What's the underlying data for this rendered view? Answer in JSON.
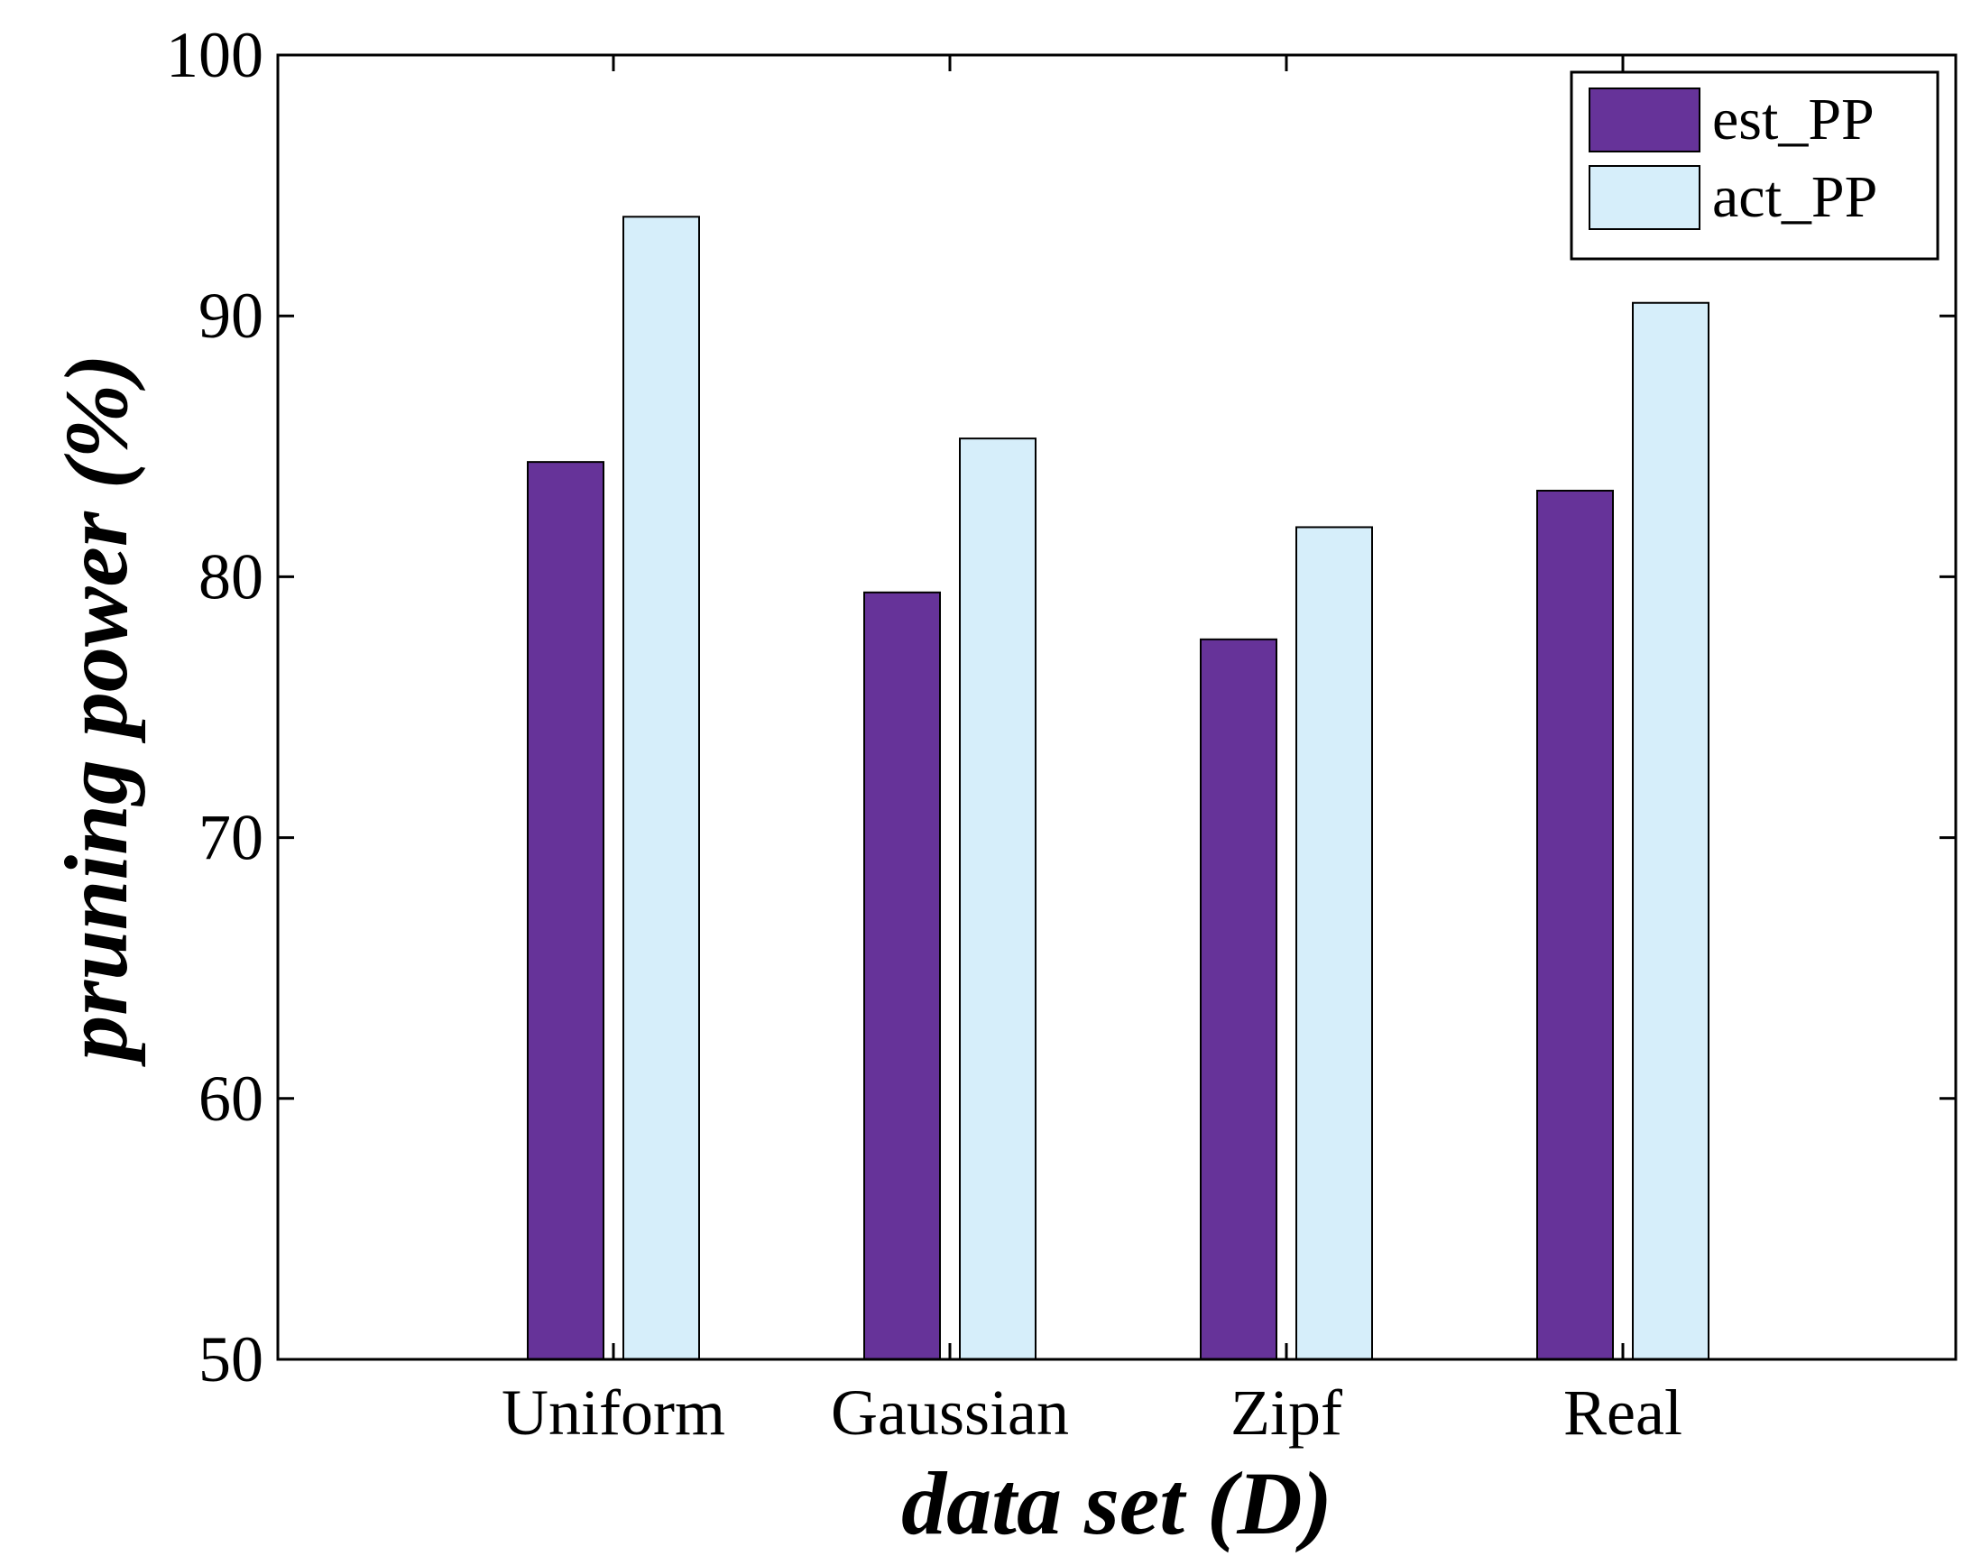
{
  "chart_data": {
    "type": "bar",
    "title": "",
    "xlabel": "data set (D)",
    "ylabel": "pruning power (%)",
    "categories": [
      "Uniform",
      "Gaussian",
      "Zipf",
      "Real"
    ],
    "series": [
      {
        "name": "est_PP",
        "values": [
          84.4,
          79.4,
          77.6,
          83.3
        ],
        "color": "#663399"
      },
      {
        "name": "act_PP",
        "values": [
          93.8,
          85.3,
          81.9,
          90.5
        ],
        "color": "#d6eefa"
      }
    ],
    "ylim": [
      50,
      100
    ],
    "yticks": [
      50,
      60,
      70,
      80,
      90,
      100
    ],
    "grid": false,
    "legend_position": "top-right"
  }
}
